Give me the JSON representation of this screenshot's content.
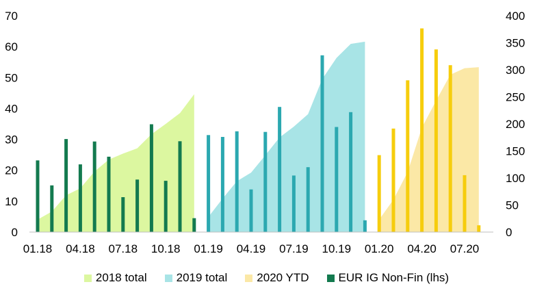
{
  "chart_data": {
    "type": "bar+area",
    "title": "",
    "x_tick_labels": [
      "01.18",
      "04.18",
      "07.18",
      "10.18",
      "01.19",
      "04.19",
      "07.19",
      "10.19",
      "01.20",
      "04.20",
      "07.20"
    ],
    "left_axis": {
      "ylim": [
        0,
        70
      ],
      "ticks": [
        0,
        10,
        20,
        30,
        40,
        50,
        60,
        70
      ]
    },
    "right_axis": {
      "ylim": [
        0,
        400
      ],
      "ticks": [
        0,
        50,
        100,
        150,
        200,
        250,
        300,
        350,
        400
      ]
    },
    "series": [
      {
        "name": "2018 total",
        "kind": "area",
        "axis": "right",
        "color": "#dcf7a0",
        "months": [
          "01.18",
          "02.18",
          "03.18",
          "04.18",
          "05.18",
          "06.18",
          "07.18",
          "08.18",
          "09.18",
          "10.18",
          "11.18",
          "12.18"
        ],
        "values": [
          23,
          38,
          68,
          81,
          112,
          134,
          145,
          155,
          181,
          200,
          220,
          255
        ]
      },
      {
        "name": "2019 total",
        "kind": "area",
        "axis": "right",
        "color": "#a8e4e6",
        "months": [
          "01.19",
          "02.19",
          "03.19",
          "04.19",
          "05.19",
          "06.19",
          "07.19",
          "08.19",
          "09.19",
          "10.19",
          "11.19",
          "12.19"
        ],
        "values": [
          28,
          62,
          94,
          110,
          142,
          175,
          195,
          218,
          283,
          322,
          348,
          352
        ]
      },
      {
        "name": "2020 YTD",
        "kind": "area",
        "axis": "right",
        "color": "#fbe8a6",
        "months": [
          "01.20",
          "02.20",
          "03.20",
          "04.20",
          "05.20",
          "06.20",
          "07.20",
          "08.20"
        ],
        "values": [
          23,
          60,
          111,
          193,
          243,
          291,
          303,
          305
        ]
      },
      {
        "name": "EUR IG Non-Fin (lhs)",
        "kind": "bar",
        "axis": "left",
        "color": "#137a4f",
        "months": [
          "01.18",
          "02.18",
          "03.18",
          "04.18",
          "05.18",
          "06.18",
          "07.18",
          "08.18",
          "09.18",
          "10.18",
          "11.18",
          "12.18",
          "01.19",
          "02.19",
          "03.19",
          "04.19",
          "05.19",
          "06.19",
          "07.19",
          "08.19",
          "09.19",
          "10.19",
          "11.19",
          "12.19",
          "01.20",
          "02.20",
          "03.20",
          "04.20",
          "05.20",
          "06.20",
          "07.20",
          "08.20"
        ],
        "values": [
          23.2,
          15.1,
          30.1,
          21.9,
          29.3,
          24.4,
          11.3,
          17.0,
          34.9,
          16.6,
          29.4,
          4.5,
          31.4,
          30.8,
          32.6,
          13.8,
          32.4,
          40.5,
          18.3,
          21.0,
          57.2,
          34.0,
          38.8,
          3.8,
          24.9,
          33.5,
          49.1,
          65.9,
          59.1,
          54.0,
          18.4,
          2.2
        ],
        "segment_colors": [
          "#137a4f",
          "#2ba8b0",
          "#f6cd0d"
        ]
      }
    ],
    "legend": {
      "position": "bottom",
      "items": [
        {
          "label": "2018 total",
          "color": "#dcf7a0"
        },
        {
          "label": "2019 total",
          "color": "#a8e4e6"
        },
        {
          "label": "2020 YTD",
          "color": "#fbe8a6"
        },
        {
          "label": "EUR IG Non-Fin (lhs)",
          "color": "#137a4f"
        }
      ]
    }
  }
}
